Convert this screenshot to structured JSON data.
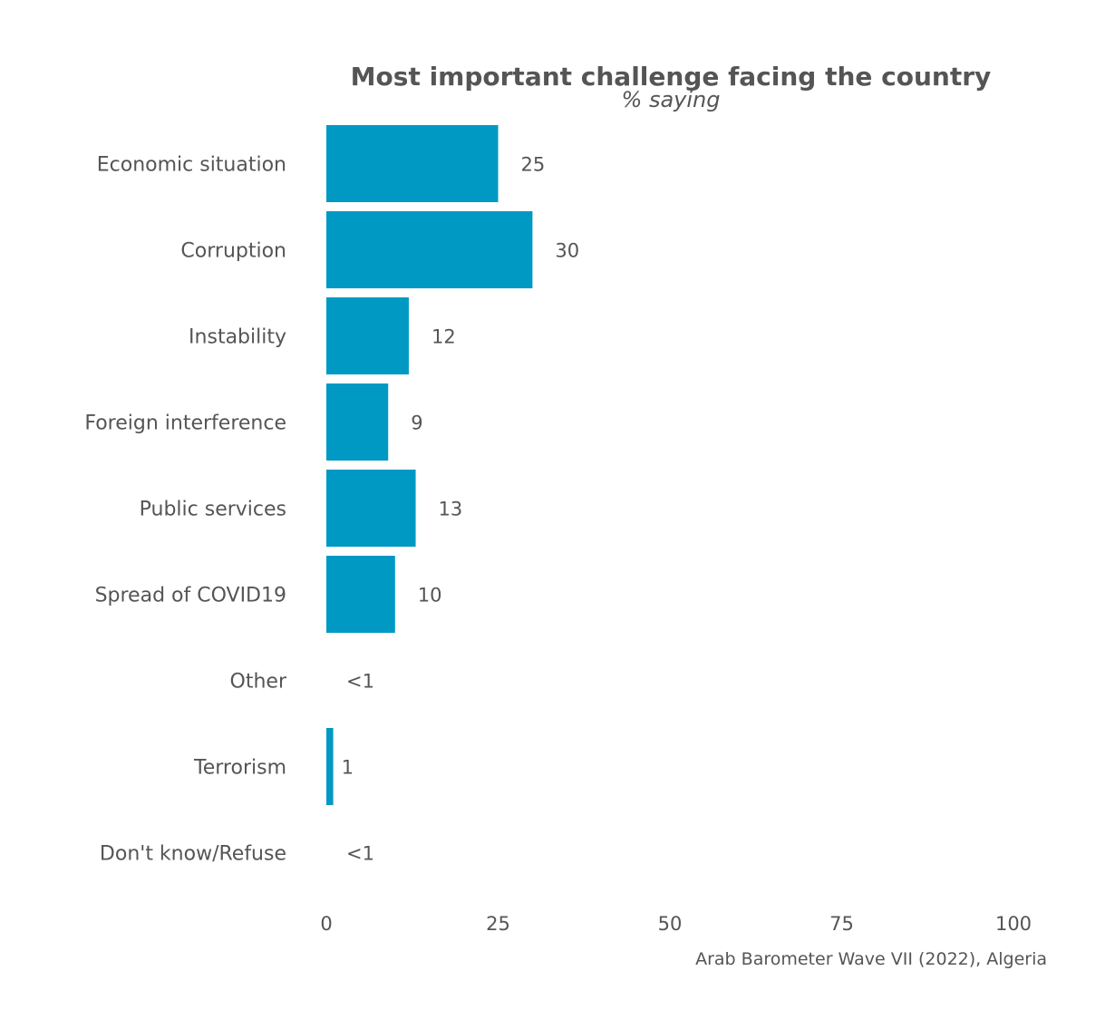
{
  "chart_data": {
    "type": "bar",
    "orientation": "horizontal",
    "title": "Most important challenge facing the country",
    "subtitle": "% saying",
    "categories": [
      "Economic situation",
      "Corruption",
      "Instability",
      "Foreign interference",
      "Public services",
      "Spread of COVID19",
      "Other",
      "Terrorism",
      "Don't know/Refuse"
    ],
    "values": [
      25,
      30,
      12,
      9,
      13,
      10,
      0.3,
      1,
      0.3
    ],
    "value_labels": [
      "25",
      "30",
      "12",
      "9",
      "13",
      "10",
      "<1",
      "1",
      "<1"
    ],
    "xlim": [
      0,
      100
    ],
    "x_ticks": [
      0,
      25,
      50,
      75,
      100
    ],
    "x_tick_labels": [
      "0",
      "25",
      "50",
      "75",
      "100"
    ],
    "bar_color": "#0099c4",
    "grid": false,
    "caption": "Arab Barometer Wave VII (2022), Algeria"
  }
}
